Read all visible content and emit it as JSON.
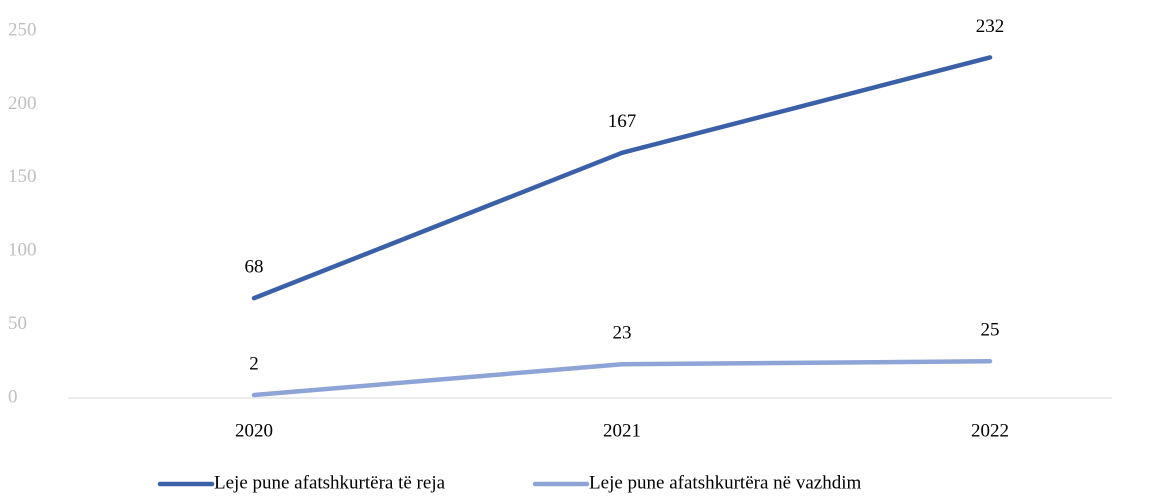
{
  "chart_data": {
    "type": "line",
    "categories": [
      "2020",
      "2021",
      "2022"
    ],
    "series": [
      {
        "name": "Leje pune afatshkurtëra të reja",
        "color": "#3c60a8",
        "values": [
          68,
          167,
          232
        ]
      },
      {
        "name": "Leje pune afatshkurtëra në vazhdim",
        "color": "#8ea3d6",
        "values": [
          2,
          23,
          25
        ]
      }
    ],
    "ylim": [
      0,
      250
    ],
    "yticks": [
      0,
      50,
      100,
      150,
      200,
      250
    ],
    "grid": false,
    "legend": "bottom"
  }
}
